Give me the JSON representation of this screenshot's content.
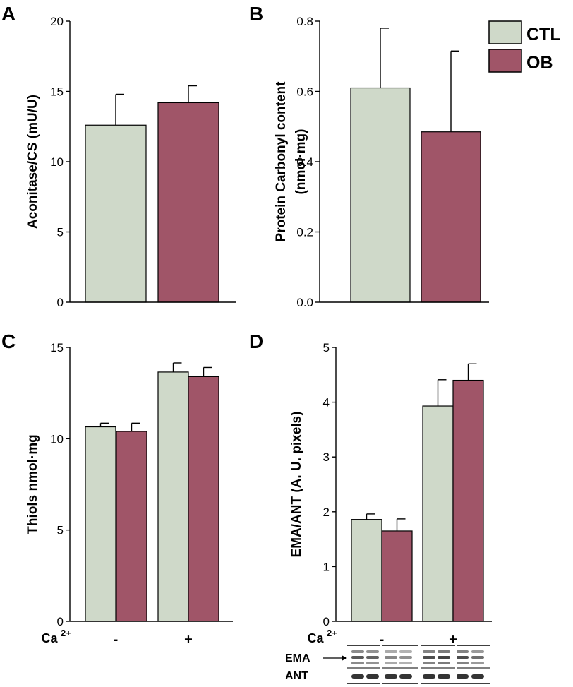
{
  "colors": {
    "ctl": "#cfd9c9",
    "ob": "#a05568",
    "axis": "#000000"
  },
  "legend": [
    {
      "label": "CTL",
      "color": "#cfd9c9"
    },
    {
      "label": "OB",
      "color": "#a05568"
    }
  ],
  "chart_data": [
    {
      "panel": "A",
      "type": "bar",
      "ylabel": "Aconitase/CS (mU/U)",
      "ylim": [
        0,
        20
      ],
      "yticks": [
        "0",
        "5",
        "10",
        "15",
        "20"
      ],
      "categories": [
        ""
      ],
      "series": [
        {
          "name": "CTL",
          "values": [
            12.6
          ],
          "errors": [
            2.2
          ]
        },
        {
          "name": "OB",
          "values": [
            14.2
          ],
          "errors": [
            1.2
          ]
        }
      ]
    },
    {
      "panel": "B",
      "type": "bar",
      "ylabel": [
        "Protein Carbonyl content",
        "(nmol·mg)"
      ],
      "ylim": [
        0,
        0.8
      ],
      "yticks": [
        "0.0",
        "0.2",
        "0.4",
        "0.6",
        "0.8"
      ],
      "categories": [
        ""
      ],
      "series": [
        {
          "name": "CTL",
          "values": [
            0.61
          ],
          "errors": [
            0.17
          ]
        },
        {
          "name": "OB",
          "values": [
            0.485
          ],
          "errors": [
            0.23
          ]
        }
      ]
    },
    {
      "panel": "C",
      "type": "bar",
      "ylabel": "Thiols nmol·mg",
      "ylim": [
        0,
        15
      ],
      "yticks": [
        "0",
        "5",
        "10",
        "15"
      ],
      "categories": [
        "-",
        "+"
      ],
      "group_label": "Ca",
      "group_label_sup": "2+",
      "series": [
        {
          "name": "CTL",
          "values": [
            10.65,
            13.65
          ],
          "errors": [
            0.2,
            0.5
          ]
        },
        {
          "name": "OB",
          "values": [
            10.4,
            13.4
          ],
          "errors": [
            0.45,
            0.5
          ]
        }
      ]
    },
    {
      "panel": "D",
      "type": "bar",
      "ylabel": "EMA/ANT (A. U. pixels)",
      "ylim": [
        0,
        5
      ],
      "yticks": [
        "0",
        "1",
        "2",
        "3",
        "4",
        "5"
      ],
      "categories": [
        "-",
        "+"
      ],
      "group_label": "Ca",
      "group_label_sup": "2+",
      "series": [
        {
          "name": "CTL",
          "values": [
            1.86,
            3.93
          ],
          "errors": [
            0.1,
            0.48
          ]
        },
        {
          "name": "OB",
          "values": [
            1.65,
            4.4
          ],
          "errors": [
            0.22,
            0.3
          ]
        }
      ]
    }
  ],
  "blot": {
    "labels": [
      "EMA",
      "ANT"
    ]
  }
}
